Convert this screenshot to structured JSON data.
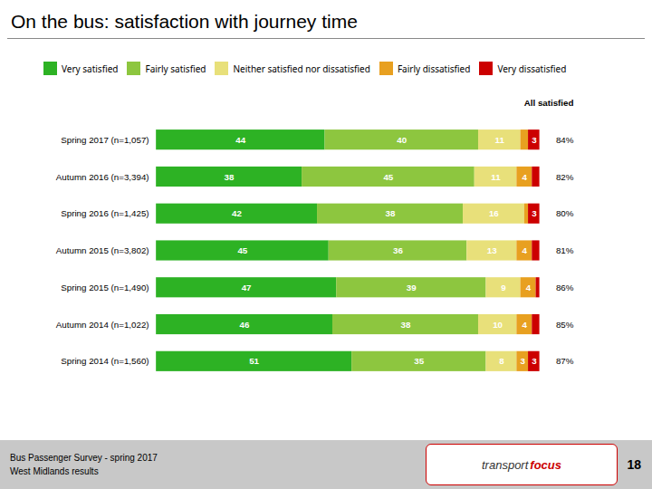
{
  "chart_data": {
    "type": "bar",
    "orientation": "horizontal",
    "stacked": true,
    "title": "On the bus: satisfaction with journey time",
    "categories": [
      "Spring 2017 (n=1,057)",
      "Autumn 2016 (n=3,394)",
      "Spring 2016 (n=1,425)",
      "Autumn 2015 (n=3,802)",
      "Spring 2015 (n=1,490)",
      "Autumn 2014 (n=1,022)",
      "Spring 2014 (n=1,560)"
    ],
    "series": [
      {
        "name": "Very satisfied",
        "color": "#2db224",
        "values": [
          44,
          38,
          42,
          45,
          47,
          46,
          51
        ],
        "value_labels": [
          "44",
          "38",
          "42",
          "45",
          "47",
          "46",
          "51"
        ]
      },
      {
        "name": "Fairly satisfied",
        "color": "#8dc63f",
        "values": [
          40,
          45,
          38,
          36,
          39,
          38,
          35
        ],
        "value_labels": [
          "40",
          "45",
          "38",
          "36",
          "39",
          "38",
          "35"
        ]
      },
      {
        "name": "Neither satisfied nor dissatisfied",
        "color": "#e8e07a",
        "values": [
          11,
          11,
          16,
          13,
          9,
          10,
          8
        ],
        "value_labels": [
          "11",
          "11",
          "16",
          "13",
          "9",
          "10",
          "8"
        ]
      },
      {
        "name": "Fairly dissatisfied",
        "color": "#e8a020",
        "values": [
          2,
          4,
          1,
          4,
          4,
          4,
          3
        ],
        "value_labels": [
          null,
          "4",
          null,
          "4",
          "4",
          "4",
          "3"
        ]
      },
      {
        "name": "Very dissatisfied",
        "color": "#cc0000",
        "values": [
          3,
          2,
          3,
          2,
          1,
          2,
          3
        ],
        "value_labels": [
          "3",
          null,
          "3",
          null,
          null,
          null,
          "3"
        ]
      }
    ],
    "xlim": [
      0,
      100
    ],
    "tick_labels": "y",
    "data_labels": true,
    "legend": "top",
    "all_satisfied": {
      "label": "All satisfied",
      "values": [
        84,
        82,
        80,
        81,
        86,
        85,
        87
      ],
      "value_labels": [
        "84%",
        "82%",
        "80%",
        "81%",
        "86%",
        "85%",
        "87%"
      ]
    },
    "footer": {
      "text": "Bus Passenger Survey - spring 2017\nWest Midlands results",
      "page_number": "18",
      "logo": [
        "transport",
        "focus"
      ],
      "logo_colors": [
        "#333333",
        "#cc0000"
      ],
      "color": "#c8c8c8"
    }
  }
}
